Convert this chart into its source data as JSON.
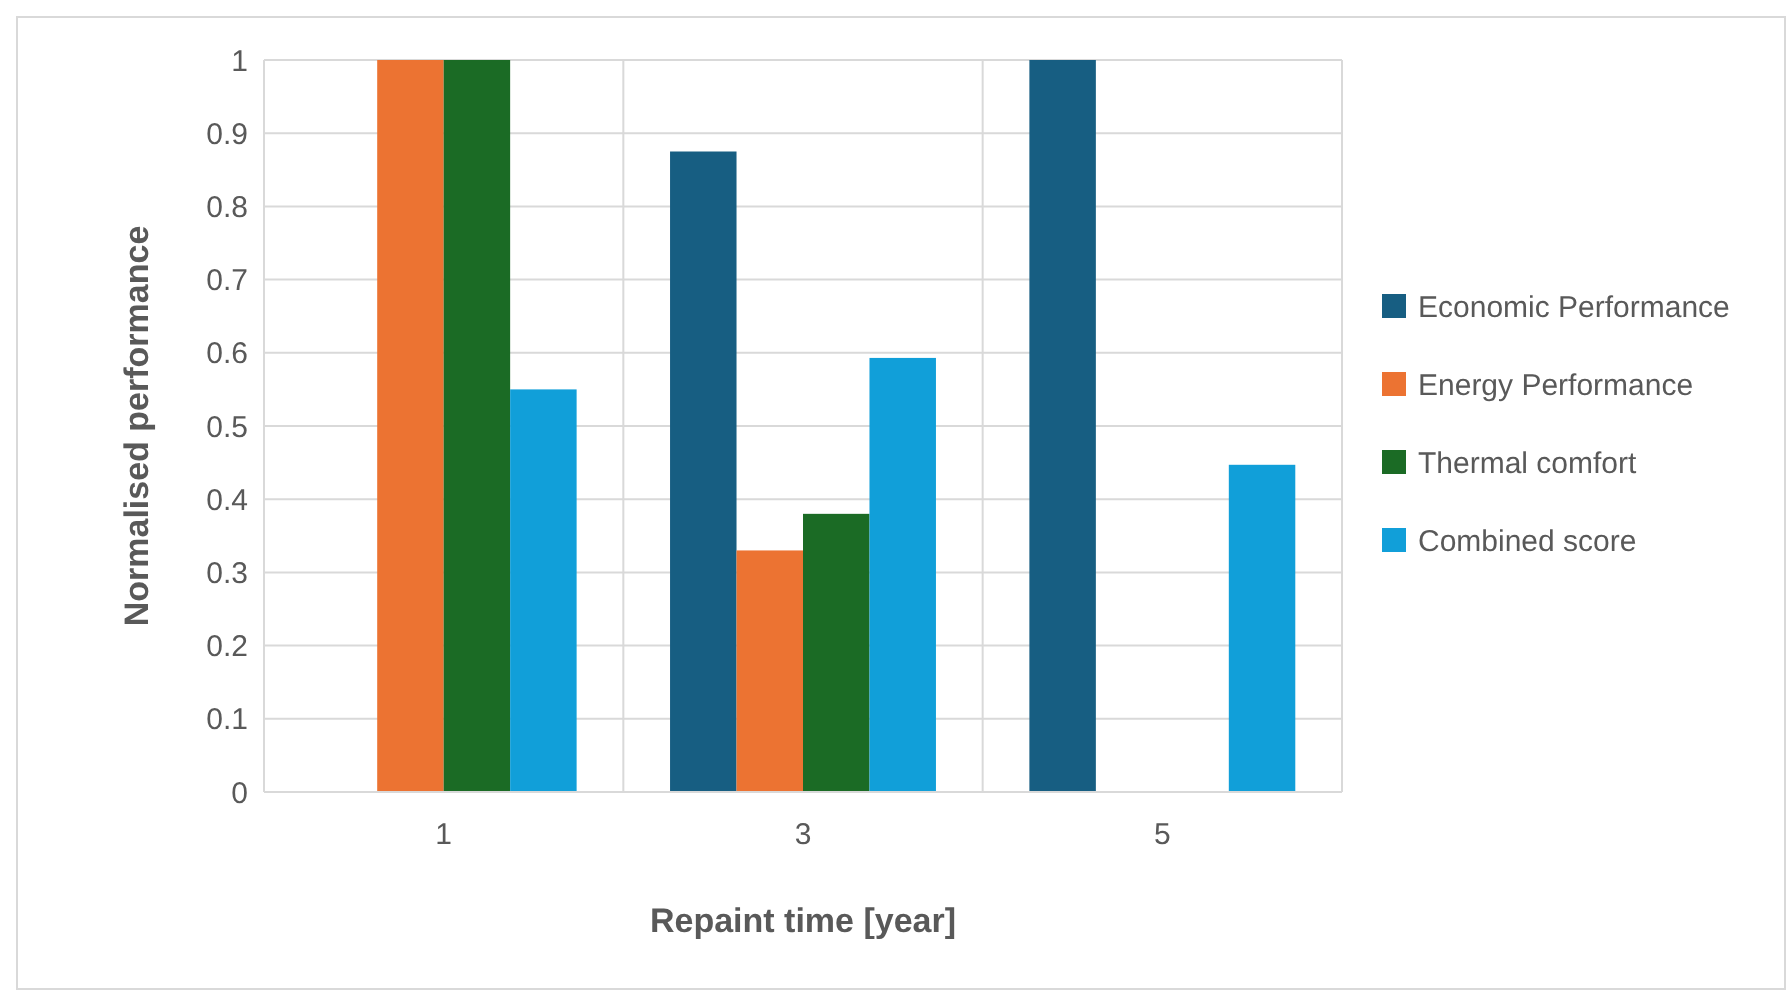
{
  "chart_data": {
    "type": "bar",
    "xlabel": "Repaint time [year]",
    "ylabel": "Normalised performance",
    "categories": [
      "1",
      "3",
      "5"
    ],
    "series": [
      {
        "name": "Economic Performance",
        "color": "#175e82",
        "values": [
          0,
          0.875,
          1
        ]
      },
      {
        "name": "Energy Performance",
        "color": "#ec7332",
        "values": [
          1,
          0.33,
          0
        ]
      },
      {
        "name": "Thermal comfort",
        "color": "#1b6b25",
        "values": [
          1,
          0.38,
          0
        ]
      },
      {
        "name": "Combined score",
        "color": "#119fd9",
        "values": [
          0.55,
          0.593,
          0.447
        ]
      }
    ],
    "ylim": [
      0,
      1
    ],
    "yticks": [
      0,
      {
        "value": 0.1,
        "label": "0.1"
      },
      {
        "value": 0.2,
        "label": "0.2"
      },
      {
        "value": 0.3,
        "label": "0.3"
      },
      {
        "value": 0.4,
        "label": "0.4"
      },
      {
        "value": 0.5,
        "label": "0.5"
      },
      {
        "value": 0.6,
        "label": "0.6"
      },
      {
        "value": 0.7,
        "label": "0.7"
      },
      {
        "value": 0.8,
        "label": "0.8"
      },
      {
        "value": 0.9,
        "label": "0.9"
      },
      1
    ],
    "grid": true,
    "legend": "right"
  }
}
